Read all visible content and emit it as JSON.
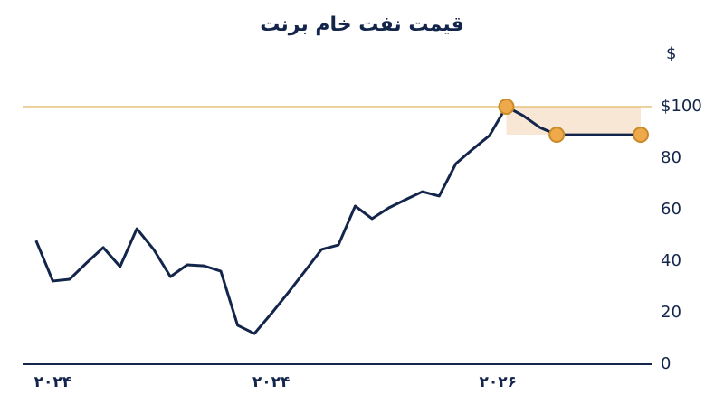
{
  "chart_data": {
    "type": "line",
    "title": "قیمت نفت خام برنت",
    "y_unit": "$",
    "x": [
      0,
      1,
      2,
      3,
      4,
      5,
      6,
      7,
      8,
      9,
      10,
      11,
      12,
      13,
      14,
      15,
      16,
      17,
      18,
      19,
      20,
      21,
      22,
      23,
      24,
      25,
      26,
      27,
      28,
      29,
      30,
      31,
      36
    ],
    "xlim": [
      -0.8,
      36
    ],
    "xticks": [
      {
        "value": 1,
        "label": "۲۰۲۴"
      },
      {
        "value": 14,
        "label": "۲۰۲۴"
      },
      {
        "value": 27.5,
        "label": "۲۰۲۶"
      }
    ],
    "ylim": [
      0,
      100
    ],
    "yticks": [
      0,
      20,
      40,
      60,
      80,
      {
        "value": 100,
        "label": "$100"
      }
    ],
    "series": [
      {
        "color": "#13254a",
        "style": "line",
        "values": [
          48,
          32.3,
          33,
          39.3,
          45.3,
          37.9,
          52.6,
          44.6,
          34,
          38.6,
          38.2,
          36.1,
          15.1,
          11.9,
          19.6,
          27.7,
          36.1,
          44.6,
          46.3,
          61.4,
          56.5,
          60.7,
          63.9,
          67,
          65.3,
          77.9,
          83.5,
          88.8,
          100,
          96.5,
          91.9,
          89.1,
          89.1
        ]
      },
      {
        "color": "#eda94a",
        "style": "markers",
        "values": [
          null,
          null,
          null,
          null,
          null,
          null,
          null,
          null,
          null,
          null,
          null,
          null,
          null,
          null,
          null,
          null,
          null,
          null,
          null,
          null,
          null,
          null,
          null,
          null,
          null,
          null,
          null,
          null,
          100,
          null,
          null,
          89.1,
          89.1
        ]
      }
    ],
    "reference_line": {
      "value": 100,
      "color": "#e3b865"
    },
    "band": {
      "xlim": [
        28,
        36
      ],
      "ylim": [
        89.1,
        100
      ],
      "color": "#f9e7d6"
    }
  }
}
